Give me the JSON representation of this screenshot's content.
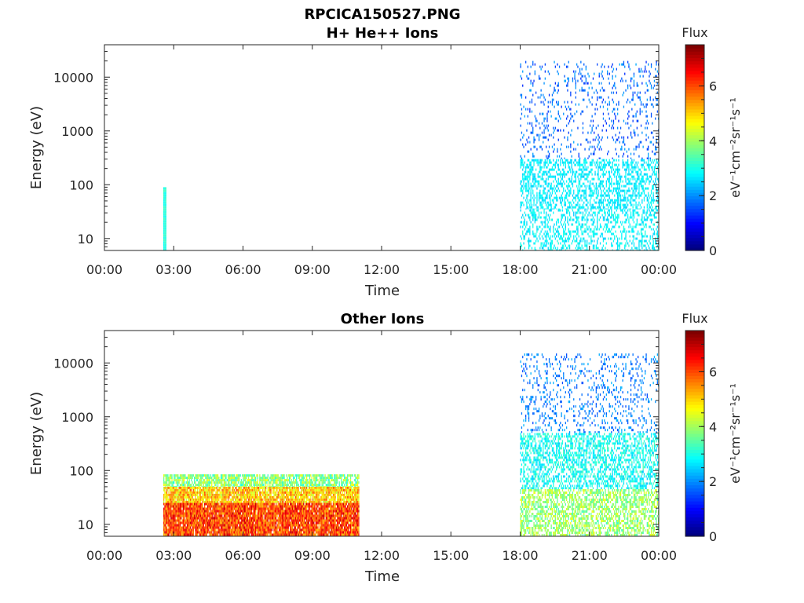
{
  "figure": {
    "title": "RPCICA150527.PNG"
  },
  "colormap": "jet",
  "chart_data": [
    {
      "type": "heatmap",
      "title": "H+ He++ Ions",
      "xlabel": "Time",
      "ylabel": "Energy (eV)",
      "x_scale": "time",
      "x_ticks": [
        "00:00",
        "03:00",
        "06:00",
        "09:00",
        "12:00",
        "15:00",
        "18:00",
        "21:00",
        "00:00"
      ],
      "x_range_hours": [
        0,
        24
      ],
      "y_scale": "log",
      "y_ticks": [
        "10",
        "100",
        "1000",
        "10000"
      ],
      "y_tick_values": [
        10,
        100,
        1000,
        10000
      ],
      "ylim": [
        6,
        40000
      ],
      "colorbar": {
        "title": "Flux",
        "label": "eV⁻¹cm⁻²sr⁻¹s⁻¹",
        "ticks": [
          "0",
          "2",
          "4",
          "6"
        ],
        "tick_values": [
          0,
          2,
          4,
          6
        ],
        "range": [
          0,
          7.5
        ]
      },
      "regions": [
        {
          "t_start_hours": 2.55,
          "t_end_hours": 2.65,
          "e_min_ev": 6,
          "e_max_ev": 90,
          "flux_min": 2.8,
          "flux_max": 3.3,
          "density": 1.0
        },
        {
          "t_start_hours": 18.0,
          "t_end_hours": 24.0,
          "e_min_ev": 6,
          "e_max_ev": 35,
          "flux_min": 2.4,
          "flux_max": 3.1,
          "density": 0.35
        },
        {
          "t_start_hours": 18.0,
          "t_end_hours": 24.0,
          "e_min_ev": 35,
          "e_max_ev": 300,
          "flux_min": 2.4,
          "flux_max": 3.0,
          "density": 0.45
        },
        {
          "t_start_hours": 18.0,
          "t_end_hours": 24.0,
          "e_min_ev": 300,
          "e_max_ev": 20000,
          "flux_min": 1.2,
          "flux_max": 2.2,
          "density": 0.12
        }
      ]
    },
    {
      "type": "heatmap",
      "title": "Other Ions",
      "xlabel": "Time",
      "ylabel": "Energy (eV)",
      "x_scale": "time",
      "x_ticks": [
        "00:00",
        "03:00",
        "06:00",
        "09:00",
        "12:00",
        "15:00",
        "18:00",
        "21:00",
        "00:00"
      ],
      "x_range_hours": [
        0,
        24
      ],
      "y_scale": "log",
      "y_ticks": [
        "10",
        "100",
        "1000",
        "10000"
      ],
      "y_tick_values": [
        10,
        100,
        1000,
        10000
      ],
      "ylim": [
        6,
        40000
      ],
      "colorbar": {
        "title": "Flux",
        "label": "eV⁻¹cm⁻²sr⁻¹s⁻¹",
        "ticks": [
          "0",
          "2",
          "4",
          "6"
        ],
        "tick_values": [
          0,
          2,
          4,
          6
        ],
        "range": [
          0,
          7.5
        ]
      },
      "regions": [
        {
          "t_start_hours": 2.55,
          "t_end_hours": 11.0,
          "e_min_ev": 6,
          "e_max_ev": 25,
          "flux_min": 5.2,
          "flux_max": 7.0,
          "density": 0.95
        },
        {
          "t_start_hours": 2.55,
          "t_end_hours": 11.0,
          "e_min_ev": 25,
          "e_max_ev": 50,
          "flux_min": 4.2,
          "flux_max": 6.0,
          "density": 0.9
        },
        {
          "t_start_hours": 2.55,
          "t_end_hours": 11.0,
          "e_min_ev": 50,
          "e_max_ev": 85,
          "flux_min": 3.0,
          "flux_max": 4.6,
          "density": 0.8
        },
        {
          "t_start_hours": 18.0,
          "t_end_hours": 24.0,
          "e_min_ev": 6,
          "e_max_ev": 45,
          "flux_min": 3.3,
          "flux_max": 4.6,
          "density": 0.55
        },
        {
          "t_start_hours": 18.0,
          "t_end_hours": 24.0,
          "e_min_ev": 45,
          "e_max_ev": 500,
          "flux_min": 2.4,
          "flux_max": 3.4,
          "density": 0.5
        },
        {
          "t_start_hours": 18.0,
          "t_end_hours": 24.0,
          "e_min_ev": 500,
          "e_max_ev": 15000,
          "flux_min": 1.4,
          "flux_max": 2.3,
          "density": 0.15
        }
      ]
    }
  ]
}
